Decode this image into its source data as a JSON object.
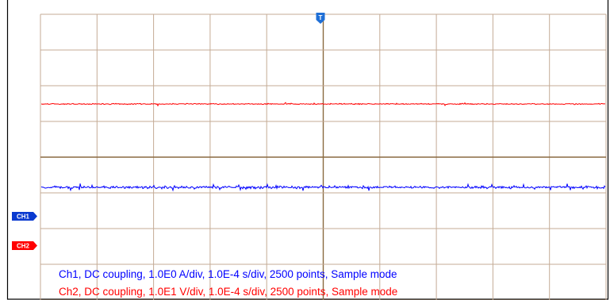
{
  "scope": {
    "colors": {
      "background": "#ffffff",
      "frame": "#000000",
      "grid": "#c4ab95",
      "center_line": "#8a6a40",
      "ch1": "#0000ff",
      "ch2": "#ff0000",
      "ch1_marker": "#0a3ad0",
      "ch2_marker": "#ff0000",
      "trigger_marker": "#1f6fd6"
    },
    "grid": {
      "horizontal_divisions": 10,
      "vertical_divisions": 8
    },
    "trigger_marker": {
      "label": "T",
      "icon": "trigger-marker-icon"
    },
    "channels": [
      {
        "label": "CH1",
        "color": "#0000ff",
        "icon": "ch1-marker-icon"
      },
      {
        "label": "CH2",
        "color": "#ff0000",
        "icon": "ch2-marker-icon"
      }
    ],
    "legend": {
      "ch1": "Ch1, DC coupling, 1.0E0 A/div, 1.0E-4 s/div, 2500 points, Sample mode",
      "ch2": "Ch2, DC coupling, 1.0E1 V/div, 1.0E-4 s/div, 2500 points, Sample mode"
    }
  }
}
